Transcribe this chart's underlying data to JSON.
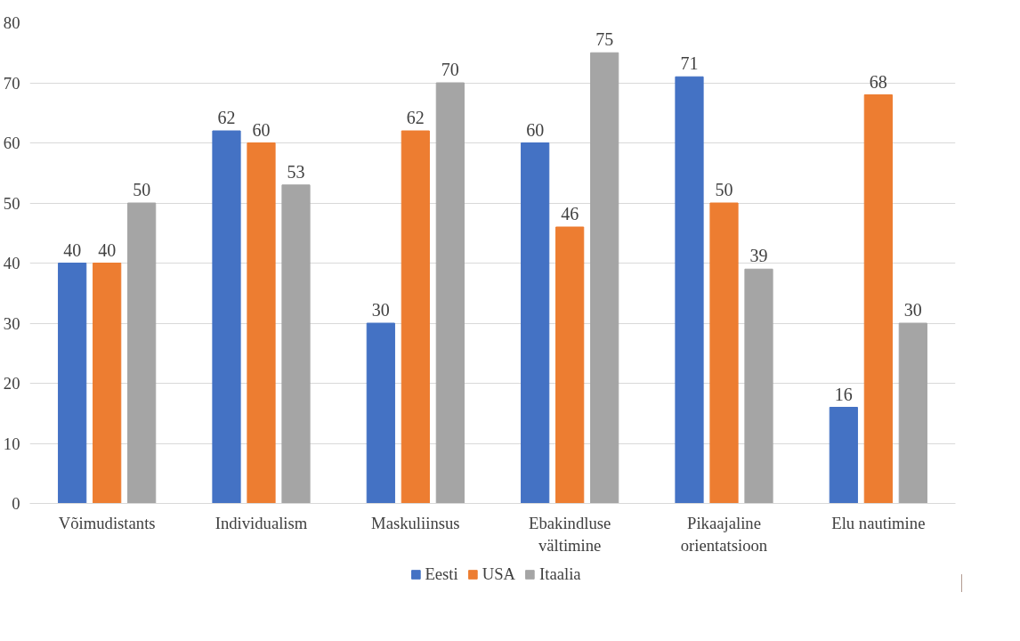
{
  "chart_data": {
    "type": "bar",
    "categories": [
      "Võimudistants",
      "Individualism",
      "Maskuliinsus",
      "Ebakindluse\nvältimine",
      "Pikaajaline\norientatsioon",
      "Elu nautimine"
    ],
    "series": [
      {
        "name": "Eesti",
        "color": "#4472c4",
        "values": [
          40,
          62,
          30,
          60,
          71,
          16
        ]
      },
      {
        "name": "USA",
        "color": "#ed7d31",
        "values": [
          40,
          60,
          62,
          46,
          50,
          68
        ]
      },
      {
        "name": "Itaalia",
        "color": "#a5a5a5",
        "values": [
          50,
          53,
          70,
          75,
          39,
          30
        ]
      }
    ],
    "ylim": [
      0,
      80
    ],
    "yticks": [
      0,
      10,
      20,
      30,
      40,
      50,
      60,
      70,
      80
    ],
    "grid": "y",
    "legend": "bottom",
    "data_labels": true
  }
}
